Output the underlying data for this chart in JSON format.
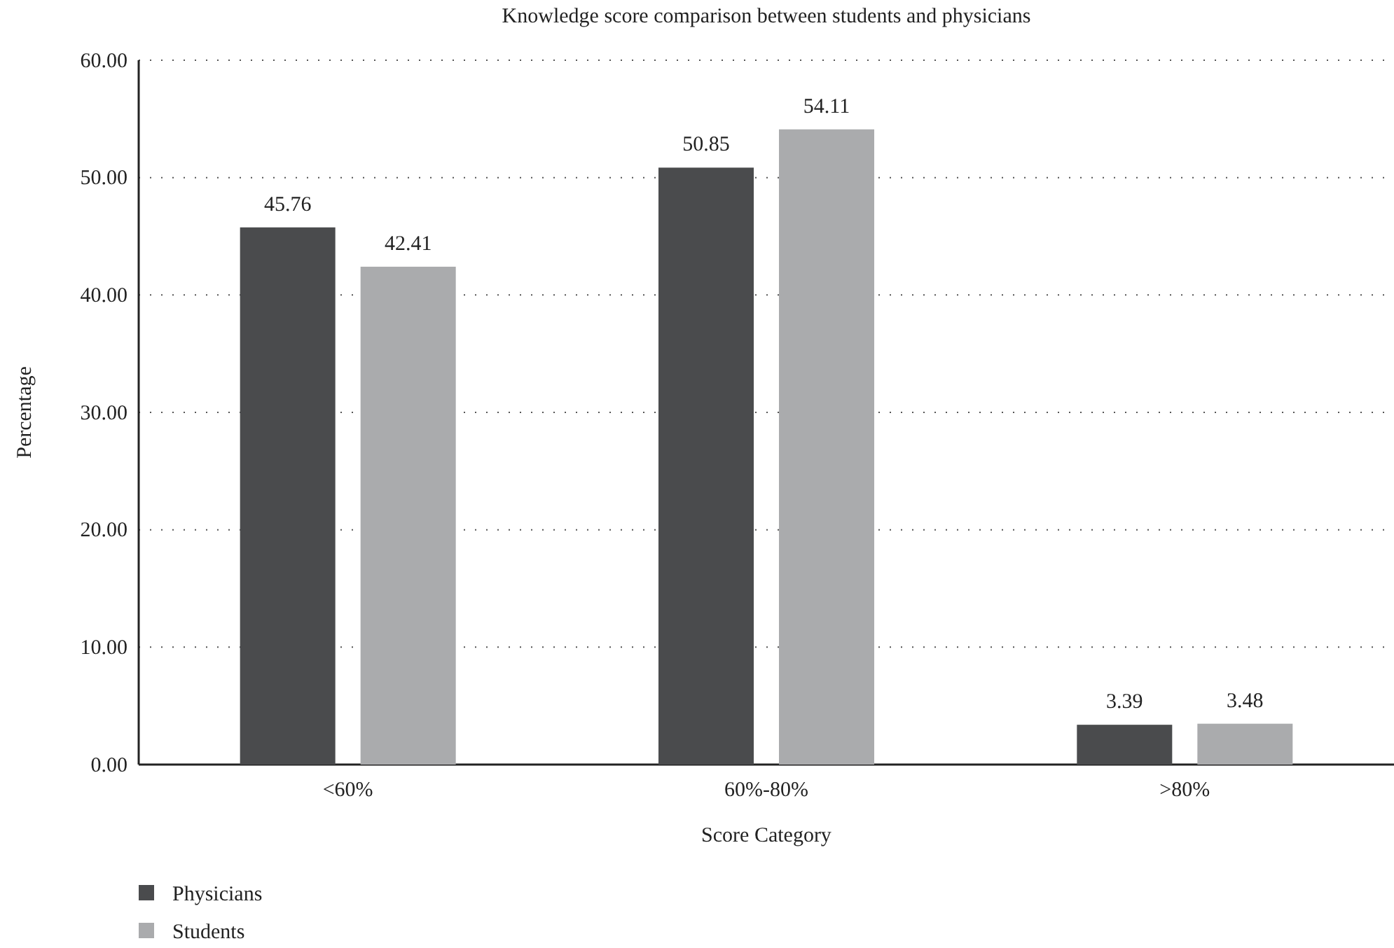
{
  "chart_data": {
    "type": "bar",
    "title": "Knowledge score comparison between students and physicians",
    "xlabel": "Score Category",
    "ylabel": "Percentage",
    "categories": [
      "<60%",
      "60%-80%",
      ">80%"
    ],
    "series": [
      {
        "name": "Physicians",
        "color": "#4a4b4d",
        "values": [
          45.76,
          50.85,
          3.39
        ]
      },
      {
        "name": "Students",
        "color": "#aaabad",
        "values": [
          42.41,
          54.11,
          3.48
        ]
      }
    ],
    "ylim": [
      0,
      60
    ],
    "yticks": [
      {
        "value": 0,
        "label": "0.00"
      },
      {
        "value": 10,
        "label": "10.00"
      },
      {
        "value": 20,
        "label": "20.00"
      },
      {
        "value": 30,
        "label": "30.00"
      },
      {
        "value": 40,
        "label": "40.00"
      },
      {
        "value": 50,
        "label": "50.00"
      },
      {
        "value": 60,
        "label": "60.00"
      }
    ],
    "grid": "y",
    "data_labels": true,
    "legend": "bottom left"
  }
}
